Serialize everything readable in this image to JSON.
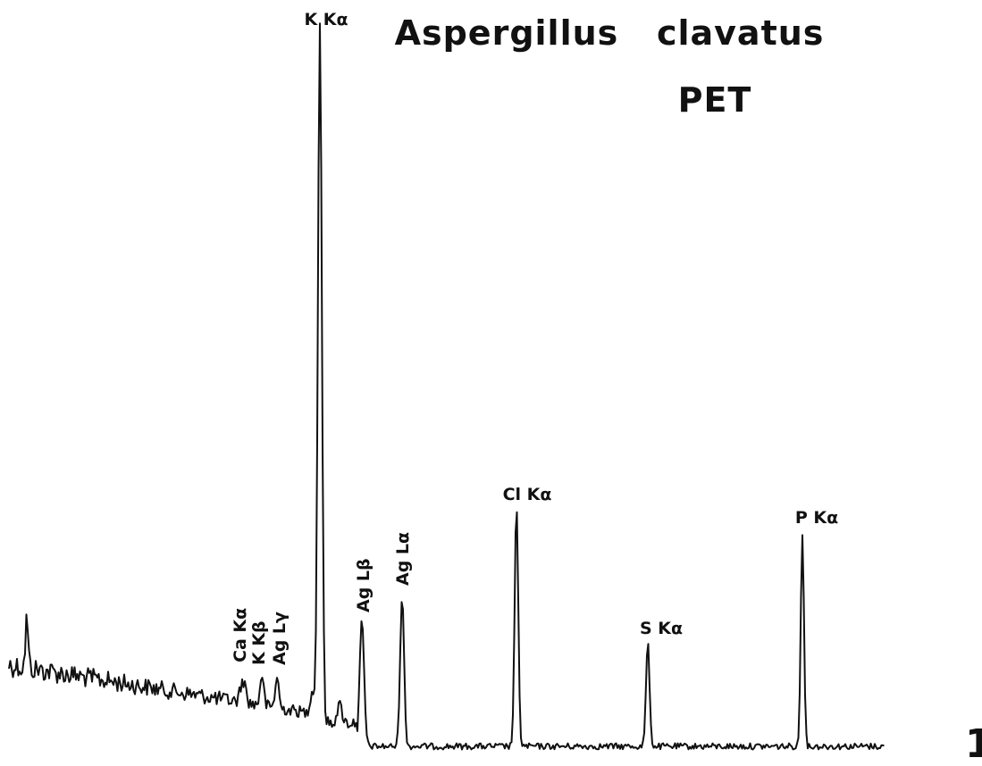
{
  "title": "Aspergillus   clavatus",
  "subtitle": "PET",
  "peaks": {
    "k_ka": "K Kα",
    "ca_ka": "Ca Kα",
    "k_kb": "K Kβ",
    "ag_lg": "Ag Lγ",
    "ag_lb": "Ag Lβ",
    "ag_la": "Ag Lα",
    "cl_ka": "Cl Kα",
    "s_ka": "S Kα",
    "p_ka": "P Kα"
  },
  "corner": "1"
}
